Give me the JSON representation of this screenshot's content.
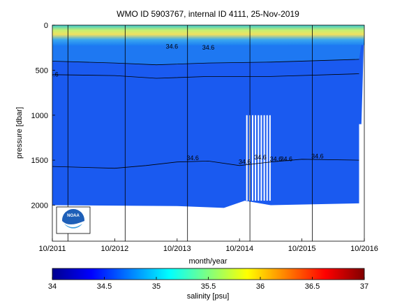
{
  "chart_data": {
    "type": "heatmap",
    "title": "WMO ID 5903767, internal ID 4111, 25-Nov-2019",
    "xlabel": "month/year",
    "ylabel": "pressure [dbar]",
    "x_range": [
      "2011-10",
      "2016-10"
    ],
    "y_range": [
      0,
      2400
    ],
    "y_reversed": true,
    "x_ticks": [
      "10/2011",
      "10/2012",
      "10/2013",
      "10/2014",
      "10/2015",
      "10/2016"
    ],
    "y_ticks": [
      0,
      500,
      1000,
      1500,
      2000
    ],
    "colorbar": {
      "label": "salinity [psu]",
      "range": [
        34,
        37
      ],
      "ticks": [
        "34",
        "34.5",
        "35",
        "35.5",
        "36",
        "36.5",
        "37"
      ],
      "colormap": "jet"
    },
    "contour_labels": [
      {
        "text": "34.6",
        "x": "2013-09",
        "y": 260
      },
      {
        "text": "34.6",
        "x": "2014-04",
        "y": 270
      },
      {
        "text": "34.6",
        "x": "2011-10",
        "y": 570
      },
      {
        "text": "34.6",
        "x": "2014-01",
        "y": 1500
      },
      {
        "text": "34.6",
        "x": "2014-11",
        "y": 1540
      },
      {
        "text": "34.6",
        "x": "2015-02",
        "y": 1490
      },
      {
        "text": "34.6",
        "x": "2015-05",
        "y": 1510
      },
      {
        "text": "34.6",
        "x": "2015-07",
        "y": 1510
      },
      {
        "text": "34.6",
        "x": "2016-01",
        "y": 1480
      }
    ],
    "contours": [
      {
        "value": 34.6,
        "depths": [
          {
            "x": "2011-10",
            "y": 1570
          },
          {
            "x": "2012-04",
            "y": 1580
          },
          {
            "x": "2012-10",
            "y": 1590
          },
          {
            "x": "2013-04",
            "y": 1560
          },
          {
            "x": "2013-10",
            "y": 1520
          },
          {
            "x": "2014-04",
            "y": 1510
          },
          {
            "x": "2014-10",
            "y": 1560
          },
          {
            "x": "2015-04",
            "y": 1520
          },
          {
            "x": "2015-10",
            "y": 1490
          },
          {
            "x": "2016-09",
            "y": 1500
          }
        ]
      },
      {
        "value": 34.6,
        "depths": [
          {
            "x": "2011-10",
            "y": 550
          },
          {
            "x": "2012-10",
            "y": 560
          },
          {
            "x": "2013-06",
            "y": 590
          },
          {
            "x": "2014-04",
            "y": 570
          },
          {
            "x": "2015-04",
            "y": 570
          },
          {
            "x": "2016-09",
            "y": 540
          }
        ]
      },
      {
        "value": 34.6,
        "depths": [
          {
            "x": "2011-10",
            "y": 400
          },
          {
            "x": "2012-10",
            "y": 420
          },
          {
            "x": "2013-06",
            "y": 440
          },
          {
            "x": "2014-04",
            "y": 420
          },
          {
            "x": "2015-04",
            "y": 410
          },
          {
            "x": "2016-09",
            "y": 380
          }
        ]
      }
    ],
    "profile_markers": [
      "2012-01",
      "2012-12",
      "2013-12",
      "2014-12",
      "2015-12"
    ],
    "data_bottom": [
      {
        "x": "2011-10",
        "y": 2000
      },
      {
        "x": "2013-10",
        "y": 2010
      },
      {
        "x": "2014-07",
        "y": 2030
      },
      {
        "x": "2014-11",
        "y": 1950
      },
      {
        "x": "2015-04",
        "y": 2000
      },
      {
        "x": "2016-09",
        "y": 1980
      }
    ],
    "logo": "NOAA"
  }
}
